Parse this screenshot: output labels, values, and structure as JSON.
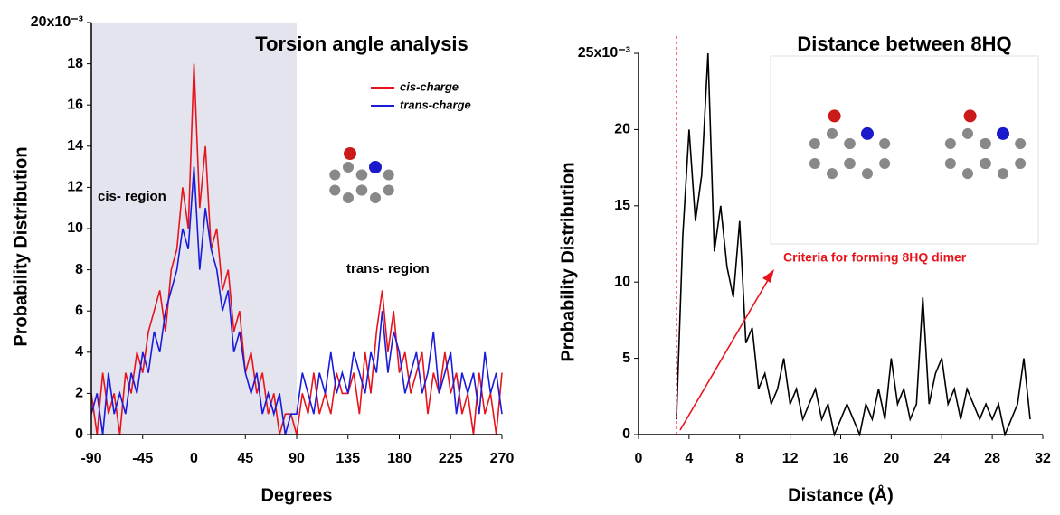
{
  "chart_data": [
    {
      "type": "line",
      "title": "Torsion angle analysis",
      "x_label": "Degrees",
      "y_label": "Probability Distribution",
      "xlim": [
        -90,
        270
      ],
      "ylim": [
        0,
        20
      ],
      "xticks": [
        -90,
        -45,
        0,
        45,
        90,
        135,
        180,
        225,
        270
      ],
      "yticks": [
        0,
        2,
        4,
        6,
        8,
        10,
        12,
        14,
        16,
        18,
        {
          "value": 20,
          "label": "20x10⁻³"
        }
      ],
      "shade": [
        -90,
        90
      ],
      "shade_color": "#e4e4ee",
      "annotations": [
        "cis- region",
        "trans- region"
      ],
      "x": [
        -90,
        -85,
        -80,
        -75,
        -70,
        -65,
        -60,
        -55,
        -50,
        -45,
        -40,
        -35,
        -30,
        -25,
        -20,
        -15,
        -10,
        -5,
        0,
        5,
        10,
        15,
        20,
        25,
        30,
        35,
        40,
        45,
        50,
        55,
        60,
        65,
        70,
        75,
        80,
        85,
        90,
        95,
        100,
        105,
        110,
        115,
        120,
        125,
        130,
        135,
        140,
        145,
        150,
        155,
        160,
        165,
        170,
        175,
        180,
        185,
        190,
        195,
        200,
        205,
        210,
        215,
        220,
        225,
        230,
        235,
        240,
        245,
        250,
        255,
        260,
        265,
        270
      ],
      "series": [
        {
          "name": "cis-charge",
          "color": "#e8141c",
          "values": [
            2,
            0,
            3,
            1,
            2,
            0,
            3,
            2,
            4,
            3,
            5,
            6,
            7,
            5,
            8,
            9,
            12,
            10,
            18,
            11,
            14,
            9,
            10,
            7,
            8,
            5,
            6,
            3,
            4,
            2,
            3,
            1,
            2,
            0,
            1,
            1,
            0,
            2,
            1,
            3,
            1,
            2,
            1,
            3,
            2,
            2,
            3,
            1,
            4,
            2,
            5,
            7,
            4,
            6,
            3,
            4,
            2,
            3,
            4,
            1,
            3,
            2,
            4,
            2,
            3,
            1,
            2,
            0,
            3,
            1,
            2,
            0,
            3
          ]
        },
        {
          "name": "trans-charge",
          "color": "#1b1bdc",
          "values": [
            1,
            2,
            0,
            3,
            1,
            2,
            1,
            3,
            2,
            4,
            3,
            5,
            4,
            6,
            7,
            8,
            10,
            9,
            13,
            8,
            11,
            9,
            8,
            6,
            7,
            4,
            5,
            3,
            2,
            3,
            1,
            2,
            1,
            2,
            0,
            1,
            1,
            3,
            2,
            1,
            3,
            2,
            4,
            2,
            3,
            2,
            4,
            3,
            2,
            4,
            3,
            6,
            3,
            5,
            4,
            2,
            3,
            4,
            2,
            3,
            5,
            2,
            3,
            4,
            1,
            3,
            2,
            3,
            1,
            4,
            2,
            3,
            1
          ]
        }
      ]
    },
    {
      "type": "line",
      "title": "Distance between 8HQ",
      "x_label": "Distance (Å)",
      "y_label": "Probability Distribution",
      "xlim": [
        0,
        32
      ],
      "ylim": [
        0,
        25
      ],
      "xticks": [
        0,
        4,
        8,
        12,
        16,
        20,
        24,
        28,
        32
      ],
      "yticks": [
        0,
        5,
        10,
        15,
        20,
        {
          "value": 25,
          "label": "25x10⁻³"
        }
      ],
      "threshold_x": 3,
      "annotations": [
        "Criteria for forming 8HQ dimer"
      ],
      "x": [
        3,
        3.5,
        4,
        4.5,
        5,
        5.5,
        6,
        6.5,
        7,
        7.5,
        8,
        8.5,
        9,
        9.5,
        10,
        10.5,
        11,
        11.5,
        12,
        12.5,
        13,
        13.5,
        14,
        14.5,
        15,
        15.5,
        16,
        16.5,
        17,
        17.5,
        18,
        18.5,
        19,
        19.5,
        20,
        20.5,
        21,
        21.5,
        22,
        22.5,
        23,
        23.5,
        24,
        24.5,
        25,
        25.5,
        26,
        26.5,
        27,
        27.5,
        28,
        28.5,
        29,
        29.5,
        30,
        30.5,
        31
      ],
      "series": [
        {
          "color": "#000000",
          "values": [
            1,
            13,
            20,
            14,
            17,
            25,
            12,
            15,
            11,
            9,
            14,
            6,
            7,
            3,
            4,
            2,
            3,
            5,
            2,
            3,
            1,
            2,
            3,
            1,
            2,
            0,
            1,
            2,
            1,
            0,
            2,
            1,
            3,
            1,
            5,
            2,
            3,
            1,
            2,
            9,
            2,
            4,
            5,
            2,
            3,
            1,
            3,
            2,
            1,
            2,
            1,
            2,
            0,
            1,
            2,
            5,
            1
          ]
        }
      ]
    }
  ]
}
